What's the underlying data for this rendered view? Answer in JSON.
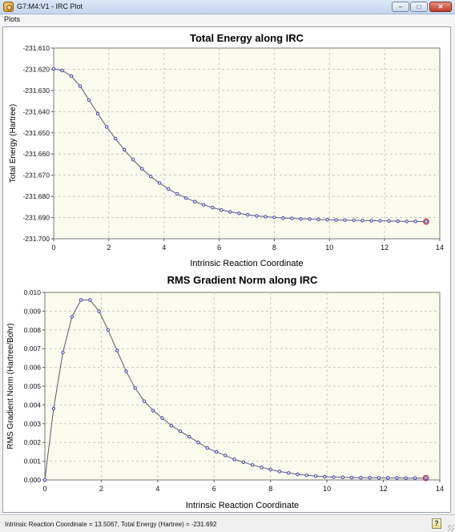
{
  "window": {
    "title": "G7:M4:V1 - IRC Plot",
    "buttons": {
      "minimize": "–",
      "maximize": "□",
      "close": "✕"
    },
    "icon": "app-molecule-icon"
  },
  "menu": {
    "items": [
      "Plots"
    ]
  },
  "status": {
    "text": "Intrinsic Reaction Coordinate = 13.5067, Total Energy (Hartree) = -231.692",
    "help_icon": "?"
  },
  "colors": {
    "line": "#5a5a6e",
    "point": "#3f3fb8",
    "selected": "#cc2a3a",
    "plot_bg": "#fbfbee",
    "grid": "#c8c8c8"
  },
  "chart_data": [
    {
      "type": "line",
      "title": "Total Energy along IRC",
      "xlabel": "Intrinsic Reaction Coordinate",
      "ylabel": "Total Energy (Hartree)",
      "xlim": [
        0,
        14
      ],
      "ylim": [
        -231.7,
        -231.61
      ],
      "xticks": [
        "0",
        "2",
        "4",
        "6",
        "8",
        "10",
        "12",
        "14"
      ],
      "yticks": [
        "-231.610",
        "-231.620",
        "-231.630",
        "-231.640",
        "-231.650",
        "-231.660",
        "-231.670",
        "-231.680",
        "-231.690",
        "-231.700"
      ],
      "grid": true,
      "x": [
        0,
        0.31,
        0.64,
        0.96,
        1.28,
        1.6,
        1.92,
        2.24,
        2.56,
        2.88,
        3.2,
        3.52,
        3.84,
        4.16,
        4.48,
        4.8,
        5.12,
        5.44,
        5.76,
        6.08,
        6.4,
        6.72,
        7.04,
        7.36,
        7.68,
        8.0,
        8.32,
        8.64,
        8.96,
        9.28,
        9.6,
        9.92,
        10.24,
        10.56,
        10.88,
        11.2,
        11.52,
        11.84,
        12.16,
        12.48,
        12.8,
        13.12,
        13.5067
      ],
      "y": [
        -231.6198,
        -231.6206,
        -231.6232,
        -231.628,
        -231.6345,
        -231.641,
        -231.6472,
        -231.6527,
        -231.658,
        -231.6627,
        -231.667,
        -231.6706,
        -231.6737,
        -231.6765,
        -231.6788,
        -231.6808,
        -231.6825,
        -231.684,
        -231.6853,
        -231.6864,
        -231.6873,
        -231.688,
        -231.6887,
        -231.6892,
        -231.6896,
        -231.6899,
        -231.6902,
        -231.6904,
        -231.6906,
        -231.6907,
        -231.6909,
        -231.691,
        -231.6911,
        -231.6912,
        -231.6913,
        -231.6914,
        -231.6915,
        -231.6915,
        -231.6916,
        -231.6917,
        -231.6918,
        -231.6918,
        -231.6919
      ],
      "selected_point": 42
    },
    {
      "type": "line",
      "title": "RMS Gradient Norm along IRC",
      "xlabel": "Intrinsic Reaction Coordinate",
      "ylabel": "RMS Gradient Norm (Hartree/Bohr)",
      "xlim": [
        0,
        14
      ],
      "ylim": [
        0.0,
        0.01
      ],
      "xticks": [
        "0",
        "2",
        "4",
        "6",
        "8",
        "10",
        "12",
        "14"
      ],
      "yticks": [
        "0.010",
        "0.009",
        "0.008",
        "0.007",
        "0.006",
        "0.005",
        "0.004",
        "0.003",
        "0.002",
        "0.001",
        "0.000"
      ],
      "grid": true,
      "x": [
        0,
        0.31,
        0.64,
        0.96,
        1.28,
        1.6,
        1.92,
        2.24,
        2.56,
        2.88,
        3.2,
        3.52,
        3.84,
        4.16,
        4.48,
        4.8,
        5.12,
        5.44,
        5.76,
        6.08,
        6.4,
        6.72,
        7.04,
        7.36,
        7.68,
        8.0,
        8.32,
        8.64,
        8.96,
        9.28,
        9.6,
        9.92,
        10.24,
        10.56,
        10.88,
        11.2,
        11.52,
        11.84,
        12.16,
        12.48,
        12.8,
        13.12,
        13.5067
      ],
      "y": [
        0.0,
        0.0038,
        0.0068,
        0.0087,
        0.0096,
        0.0096,
        0.009,
        0.008,
        0.0069,
        0.0058,
        0.0049,
        0.0042,
        0.0037,
        0.0033,
        0.0029,
        0.0026,
        0.0023,
        0.002,
        0.0017,
        0.0015,
        0.0013,
        0.0011,
        0.00095,
        0.0008,
        0.00067,
        0.00055,
        0.00045,
        0.00037,
        0.0003,
        0.00025,
        0.0002,
        0.00017,
        0.00015,
        0.00014,
        0.00013,
        0.00012,
        0.00012,
        0.00011,
        0.00011,
        0.00011,
        0.0001,
        0.0001,
        0.0001
      ],
      "selected_point": 42
    }
  ]
}
